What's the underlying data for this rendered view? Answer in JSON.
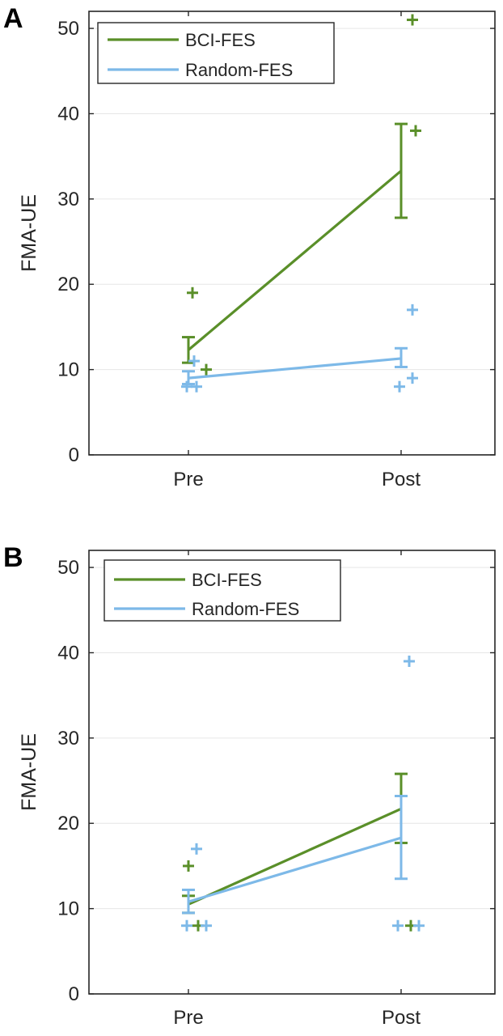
{
  "chart_data": [
    {
      "type": "line",
      "panel_label": "A",
      "categories": [
        "Pre",
        "Post"
      ],
      "ylabel": "FMA-UE",
      "xlabel": "",
      "ylim": [
        0,
        52
      ],
      "yticks": [
        0,
        10,
        20,
        30,
        40,
        50
      ],
      "grid": "horizontal",
      "legend": {
        "position": "top-left",
        "entries": [
          "BCI-FES",
          "Random-FES"
        ]
      },
      "series": [
        {
          "name": "BCI-FES",
          "color": "#5a8f29",
          "means": [
            12.3,
            33.3
          ],
          "error_low": [
            10.8,
            27.8
          ],
          "error_high": [
            13.8,
            38.8
          ],
          "points": [
            {
              "x": "Pre",
              "y": 19
            },
            {
              "x": "Pre",
              "y": 10
            },
            {
              "x": "Post",
              "y": 51
            },
            {
              "x": "Post",
              "y": 38
            }
          ]
        },
        {
          "name": "Random-FES",
          "color": "#7db9e8",
          "means": [
            9.0,
            11.3
          ],
          "error_low": [
            8.3,
            10.3
          ],
          "error_high": [
            9.8,
            12.5
          ],
          "points": [
            {
              "x": "Pre",
              "y": 11
            },
            {
              "x": "Pre",
              "y": 8
            },
            {
              "x": "Pre",
              "y": 8
            },
            {
              "x": "Post",
              "y": 17
            },
            {
              "x": "Post",
              "y": 9
            },
            {
              "x": "Post",
              "y": 8
            }
          ]
        }
      ]
    },
    {
      "type": "line",
      "panel_label": "B",
      "categories": [
        "Pre",
        "Post"
      ],
      "ylabel": "FMA-UE",
      "xlabel": "",
      "ylim": [
        0,
        52
      ],
      "yticks": [
        0,
        10,
        20,
        30,
        40,
        50
      ],
      "grid": "horizontal",
      "legend": {
        "position": "top-left",
        "entries": [
          "BCI-FES",
          "Random-FES"
        ]
      },
      "series": [
        {
          "name": "BCI-FES",
          "color": "#5a8f29",
          "means": [
            10.5,
            21.7
          ],
          "error_low": [
            9.5,
            17.7
          ],
          "error_high": [
            11.5,
            25.8
          ],
          "points": [
            {
              "x": "Pre",
              "y": 15
            },
            {
              "x": "Pre",
              "y": 8
            },
            {
              "x": "Post",
              "y": 8
            }
          ]
        },
        {
          "name": "Random-FES",
          "color": "#7db9e8",
          "means": [
            10.8,
            18.3
          ],
          "error_low": [
            9.5,
            13.5
          ],
          "error_high": [
            12.2,
            23.2
          ],
          "points": [
            {
              "x": "Pre",
              "y": 17
            },
            {
              "x": "Pre",
              "y": 8
            },
            {
              "x": "Pre",
              "y": 8
            },
            {
              "x": "Post",
              "y": 39
            },
            {
              "x": "Post",
              "y": 8
            },
            {
              "x": "Post",
              "y": 8
            }
          ]
        }
      ]
    }
  ]
}
